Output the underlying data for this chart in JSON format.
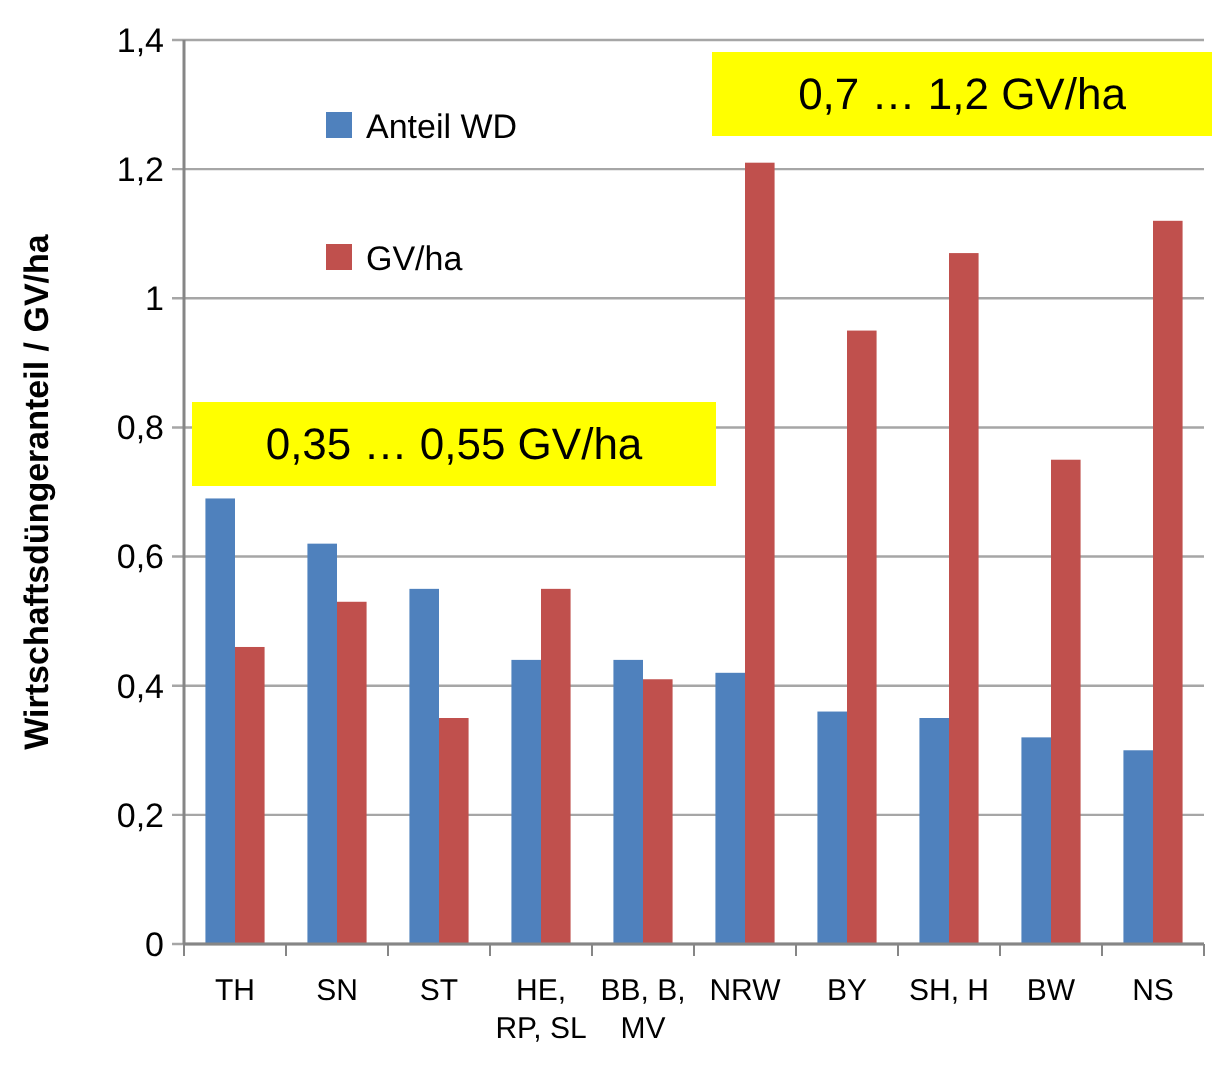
{
  "chart_data": {
    "type": "bar",
    "ylabel": "Wirtschaftsdüngeranteil / GV/ha",
    "categories": [
      "TH",
      "SN",
      "ST",
      "HE, RP, SL",
      "BB, B, MV",
      "NRW",
      "BY",
      "SH, H",
      "BW",
      "NS"
    ],
    "series": [
      {
        "name": "Anteil WD",
        "color": "#4f81bd",
        "values": [
          0.69,
          0.62,
          0.55,
          0.44,
          0.44,
          0.42,
          0.36,
          0.35,
          0.32,
          0.3
        ]
      },
      {
        "name": "GV/ha",
        "color": "#c0504d",
        "values": [
          0.46,
          0.53,
          0.35,
          0.55,
          0.41,
          1.21,
          0.95,
          1.07,
          0.75,
          1.12
        ]
      }
    ],
    "ylim": [
      0,
      1.4
    ],
    "yticks": [
      0,
      {
        "value": 0.2,
        "label": "0,2"
      },
      {
        "value": 0.4,
        "label": "0,4"
      },
      {
        "value": 0.6,
        "label": "0,6"
      },
      {
        "value": 0.8,
        "label": "0,8"
      },
      1,
      {
        "value": 1.2,
        "label": "1,2"
      },
      {
        "value": 1.4,
        "label": "1,4"
      }
    ],
    "grid": true,
    "legend": "top left",
    "annotations": [
      "0,35 … 0,55 GV/ha",
      "0,7 … 1,2 GV/ha"
    ]
  }
}
